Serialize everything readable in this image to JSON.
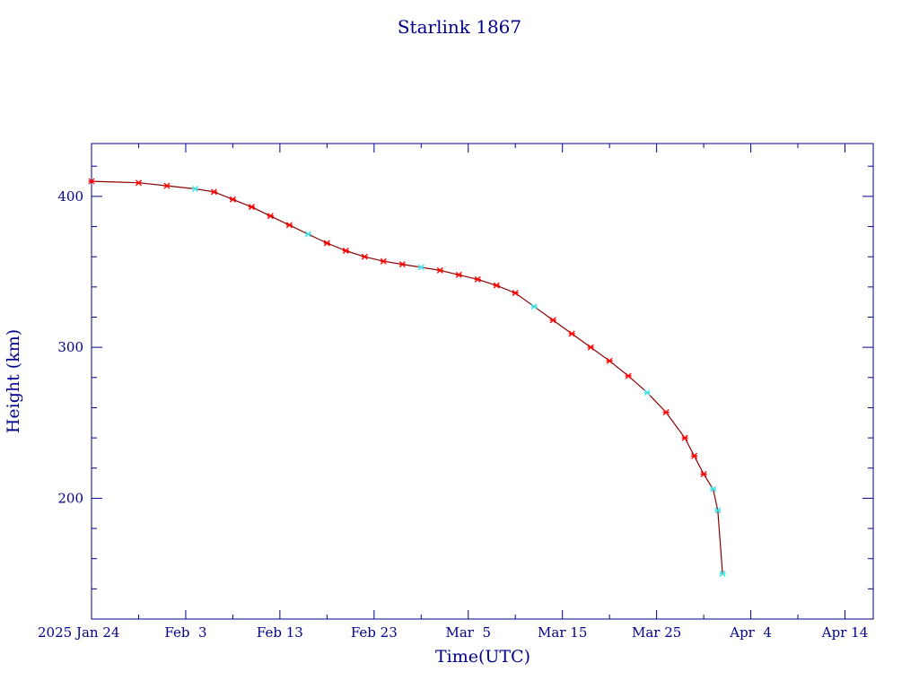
{
  "chart_data": {
    "type": "line",
    "title": "Starlink 1867",
    "xlabel": "Time(UTC)",
    "ylabel": "Height (km)",
    "x_tick_labels": [
      "2025 Jan 24",
      "Feb  3",
      "Feb 13",
      "Feb 23",
      "Mar  5",
      "Mar 15",
      "Mar 25",
      "Apr  4",
      "Apr 14"
    ],
    "y_tick_labels": [
      "200",
      "300",
      "400"
    ],
    "xlim": [
      "2025-01-24",
      "2025-04-17"
    ],
    "ylim": [
      120,
      435
    ],
    "x_major_step_days": 10,
    "x_minor_step_days": 5,
    "y_major_step": 100,
    "y_minor_step": 20,
    "grid": false,
    "line_color": "#8b0000",
    "marker_color": "#ff0000",
    "alt_marker_color": "#40e0e0",
    "axis_color": "#00008b",
    "series": [
      {
        "values": [
          {
            "x": "2025-01-24",
            "y": 410
          },
          {
            "x": "2025-01-29",
            "y": 409
          },
          {
            "x": "2025-02-01",
            "y": 407
          },
          {
            "x": "2025-02-04",
            "y": 405
          },
          {
            "x": "2025-02-06",
            "y": 403
          },
          {
            "x": "2025-02-08",
            "y": 398
          },
          {
            "x": "2025-02-10",
            "y": 393
          },
          {
            "x": "2025-02-12",
            "y": 387
          },
          {
            "x": "2025-02-14",
            "y": 381
          },
          {
            "x": "2025-02-16",
            "y": 375
          },
          {
            "x": "2025-02-18",
            "y": 369
          },
          {
            "x": "2025-02-20",
            "y": 364
          },
          {
            "x": "2025-02-22",
            "y": 360
          },
          {
            "x": "2025-02-24",
            "y": 357
          },
          {
            "x": "2025-02-26",
            "y": 355
          },
          {
            "x": "2025-02-28",
            "y": 353
          },
          {
            "x": "2025-03-02",
            "y": 351
          },
          {
            "x": "2025-03-04",
            "y": 348
          },
          {
            "x": "2025-03-06",
            "y": 345
          },
          {
            "x": "2025-03-08",
            "y": 341
          },
          {
            "x": "2025-03-10",
            "y": 336
          },
          {
            "x": "2025-03-12",
            "y": 327
          },
          {
            "x": "2025-03-14",
            "y": 318
          },
          {
            "x": "2025-03-16",
            "y": 309
          },
          {
            "x": "2025-03-18",
            "y": 300
          },
          {
            "x": "2025-03-20",
            "y": 291
          },
          {
            "x": "2025-03-22",
            "y": 281
          },
          {
            "x": "2025-03-24",
            "y": 270
          },
          {
            "x": "2025-03-26",
            "y": 257
          },
          {
            "x": "2025-03-28",
            "y": 240
          },
          {
            "x": "2025-03-29",
            "y": 228
          },
          {
            "x": "2025-03-30",
            "y": 216
          },
          {
            "x": "2025-03-31",
            "y": 206
          },
          {
            "x": "2025-03-31 12:00",
            "y": 192
          },
          {
            "x": "2025-04-01",
            "y": 150
          }
        ]
      }
    ]
  }
}
